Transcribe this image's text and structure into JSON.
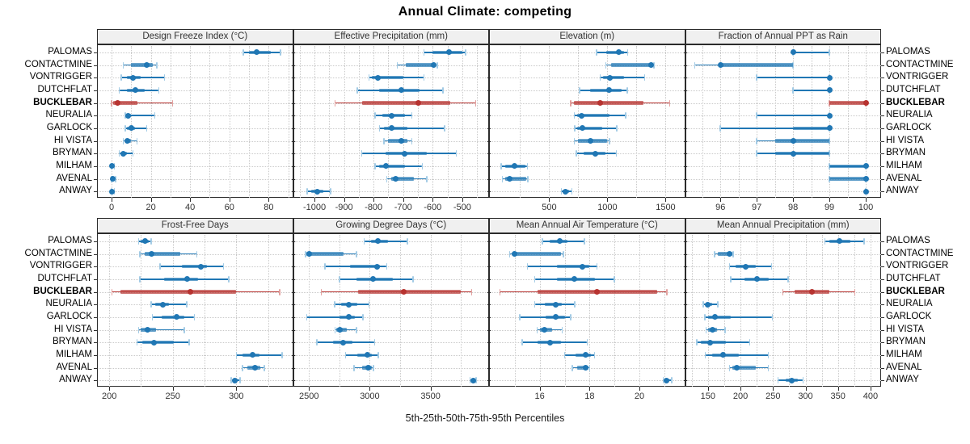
{
  "title": "Annual Climate: competing",
  "caption": "5th-25th-50th-75th-95th Percentiles",
  "colors": {
    "blue": "#2077b4",
    "blue_light": "#a3cbe5",
    "red": "#b73330",
    "red_light": "#e2a19f",
    "strip_bg": "#f0f0f0",
    "grid": "#c9c9c9",
    "border": "#2b2b2b"
  },
  "locations": [
    "PALOMAS",
    "CONTACTMINE",
    "VONTRIGGER",
    "DUTCHFLAT",
    "BUCKLEBAR",
    "NEURALIA",
    "GARLOCK",
    "HI VISTA",
    "BRYMAN",
    "MILHAM",
    "AVENAL",
    "ANWAY"
  ],
  "highlight_location": "BUCKLEBAR",
  "chart_data": {
    "type": "scatter",
    "subtype": "percentile-interval-dotplot",
    "percentiles": [
      5,
      25,
      50,
      75,
      95
    ],
    "grid": "dotted",
    "panels": [
      {
        "title": "Design Freeze Index (°C)",
        "xlim": [
          -7,
          92
        ],
        "ticks": [
          0,
          20,
          40,
          60,
          80
        ],
        "tick_labels": [
          "0",
          "20",
          "40",
          "60",
          "80"
        ],
        "values": [
          [
            67,
            70,
            74,
            81,
            86
          ],
          [
            6,
            10,
            18,
            21,
            23
          ],
          [
            5,
            8,
            11,
            15,
            27
          ],
          [
            4,
            8,
            12,
            17,
            24
          ],
          [
            0,
            1,
            3,
            13,
            31
          ],
          [
            7,
            8,
            8.5,
            10,
            22
          ],
          [
            7,
            8,
            10,
            12,
            18
          ],
          [
            6,
            7,
            8,
            10,
            13
          ],
          [
            4,
            5,
            6,
            8,
            11
          ],
          [
            0,
            0,
            0.3,
            0.8,
            1.5
          ],
          [
            0,
            0.2,
            0.6,
            1.2,
            2
          ],
          [
            0,
            0,
            0.3,
            0.8,
            1.5
          ]
        ]
      },
      {
        "title": "Effective Precipitation (mm)",
        "xlim": [
          -1070,
          -412
        ],
        "ticks": [
          -1000,
          -900,
          -800,
          -700,
          -600,
          -500
        ],
        "tick_labels": [
          "-1000",
          "-900",
          "-800",
          "-700",
          "-600",
          "-500"
        ],
        "values": [
          [
            -630,
            -600,
            -545,
            -500,
            -488
          ],
          [
            -720,
            -690,
            -598,
            -590,
            -585
          ],
          [
            -815,
            -805,
            -785,
            -700,
            -630
          ],
          [
            -855,
            -780,
            -705,
            -645,
            -565
          ],
          [
            -930,
            -840,
            -650,
            -540,
            -455
          ],
          [
            -795,
            -770,
            -740,
            -695,
            -670
          ],
          [
            -780,
            -765,
            -740,
            -685,
            -560
          ],
          [
            -765,
            -750,
            -705,
            -685,
            -670
          ],
          [
            -840,
            -760,
            -695,
            -620,
            -520
          ],
          [
            -795,
            -780,
            -758,
            -695,
            -635
          ],
          [
            -755,
            -740,
            -725,
            -665,
            -620
          ],
          [
            -1025,
            -1010,
            -990,
            -970,
            -945
          ]
        ]
      },
      {
        "title": "Elevation (m)",
        "xlim": [
          -10,
          1660
        ],
        "ticks": [
          500,
          1000,
          1500
        ],
        "tick_labels": [
          "500",
          "1000",
          "1500"
        ],
        "values": [
          [
            905,
            990,
            1095,
            1140,
            1175
          ],
          [
            985,
            1035,
            1375,
            1392,
            1400
          ],
          [
            938,
            962,
            1020,
            1145,
            1320
          ],
          [
            760,
            850,
            1012,
            1123,
            1170
          ],
          [
            685,
            715,
            940,
            1310,
            1535
          ],
          [
            715,
            737,
            778,
            1015,
            1155
          ],
          [
            720,
            737,
            787,
            955,
            1080
          ],
          [
            715,
            748,
            852,
            1000,
            1017
          ],
          [
            732,
            794,
            898,
            985,
            1075
          ],
          [
            88,
            123,
            204,
            296,
            312
          ],
          [
            97,
            121,
            158,
            305,
            318
          ],
          [
            603,
            617,
            638,
            668,
            695
          ]
        ]
      },
      {
        "title": "Fraction of Annual PPT as Rain",
        "xlim": [
          95.05,
          100.4
        ],
        "ticks": [
          96,
          97,
          98,
          99,
          100
        ],
        "tick_labels": [
          "96",
          "97",
          "98",
          "99",
          "100"
        ],
        "values": [
          [
            98,
            98,
            98,
            98,
            99
          ],
          [
            95.3,
            96,
            96,
            98,
            98
          ],
          [
            97,
            99,
            99,
            99,
            99
          ],
          [
            98,
            99,
            99,
            99,
            99
          ],
          [
            99,
            99,
            100,
            100,
            100
          ],
          [
            97,
            99,
            99,
            99,
            99
          ],
          [
            96,
            98,
            99,
            99,
            99
          ],
          [
            97,
            97.5,
            98,
            99,
            99
          ],
          [
            97,
            97.5,
            98,
            99,
            99
          ],
          [
            99,
            99,
            100,
            100,
            100
          ],
          [
            99,
            99,
            100,
            100,
            100
          ],
          [
            100,
            100,
            100,
            100,
            100
          ]
        ]
      },
      {
        "title": "Frost-Free Days",
        "xlim": [
          191,
          344
        ],
        "ticks": [
          200,
          250,
          300
        ],
        "tick_labels": [
          "200",
          "250",
          "300"
        ],
        "values": [
          [
            223,
            225,
            228,
            231,
            233
          ],
          [
            224,
            228,
            233,
            256,
            269
          ],
          [
            240,
            257,
            272,
            277,
            290
          ],
          [
            224,
            243,
            261,
            270,
            294
          ],
          [
            202,
            209,
            264,
            300,
            334
          ],
          [
            233,
            236,
            242,
            247,
            261
          ],
          [
            234,
            241,
            253,
            259,
            267
          ],
          [
            223,
            225,
            230,
            237,
            259
          ],
          [
            222,
            226,
            235,
            251,
            263
          ],
          [
            300,
            305,
            313,
            318,
            336
          ],
          [
            305,
            309,
            315,
            319,
            322
          ],
          [
            296,
            297,
            299,
            301,
            303
          ]
        ]
      },
      {
        "title": "Growing Degree Days (°C)",
        "xlim": [
          2375,
          3975
        ],
        "ticks": [
          2500,
          3000,
          3500
        ],
        "tick_labels": [
          "2500",
          "3000",
          "3500"
        ],
        "values": [
          [
            2955,
            3010,
            3070,
            3150,
            3310
          ],
          [
            2470,
            2480,
            2500,
            2785,
            2890
          ],
          [
            2630,
            2840,
            3060,
            3085,
            3140
          ],
          [
            2750,
            2890,
            3030,
            3190,
            3355
          ],
          [
            2600,
            2905,
            3280,
            3750,
            3840
          ],
          [
            2710,
            2765,
            2830,
            2895,
            2995
          ],
          [
            2480,
            2750,
            2825,
            2875,
            2945
          ],
          [
            2715,
            2725,
            2757,
            2810,
            2890
          ],
          [
            2565,
            2700,
            2778,
            2855,
            3040
          ],
          [
            2800,
            2900,
            2980,
            3020,
            3070
          ],
          [
            2870,
            2935,
            2985,
            3015,
            3030
          ],
          [
            3825,
            3835,
            3850,
            3865,
            3875
          ]
        ]
      },
      {
        "title": "Mean Annual Air Temperature (°C)",
        "xlim": [
          14,
          21.8
        ],
        "ticks": [
          16,
          18,
          20
        ],
        "tick_labels": [
          "16",
          "18",
          "20"
        ],
        "values": [
          [
            16.1,
            16.4,
            16.8,
            17.1,
            17.8
          ],
          [
            14.8,
            14.9,
            15.0,
            16.85,
            16.95
          ],
          [
            15.5,
            16.7,
            17.7,
            18.0,
            18.3
          ],
          [
            15.8,
            16.7,
            17.4,
            18.2,
            19.0
          ],
          [
            14.4,
            15.9,
            18.3,
            20.7,
            21.1
          ],
          [
            15.8,
            16.2,
            16.65,
            16.9,
            17.4
          ],
          [
            15.2,
            16.25,
            16.65,
            17.0,
            17.25
          ],
          [
            15.9,
            16.0,
            16.2,
            16.5,
            16.9
          ],
          [
            15.3,
            15.9,
            16.4,
            16.85,
            17.9
          ],
          [
            17.0,
            17.45,
            17.85,
            18.05,
            18.2
          ],
          [
            17.3,
            17.5,
            17.85,
            17.95,
            18.0
          ],
          [
            20.95,
            21.0,
            21.1,
            21.2,
            21.3
          ]
        ]
      },
      {
        "title": "Mean Annual Precipitation (mm)",
        "xlim": [
          116,
          415
        ],
        "ticks": [
          150,
          200,
          250,
          300,
          350,
          400
        ],
        "tick_labels": [
          "150",
          "200",
          "250",
          "300",
          "350",
          "400"
        ],
        "values": [
          [
            330,
            337,
            352,
            369,
            390
          ],
          [
            160,
            165,
            183,
            187,
            189
          ],
          [
            183,
            193,
            208,
            224,
            248
          ],
          [
            185,
            206,
            225,
            243,
            273
          ],
          [
            265,
            283,
            310,
            337,
            376
          ],
          [
            143,
            146,
            150,
            157,
            165
          ],
          [
            145,
            150,
            161,
            185,
            249
          ],
          [
            147,
            150,
            157,
            164,
            176
          ],
          [
            133,
            139,
            153,
            178,
            214
          ],
          [
            146,
            157,
            173,
            197,
            243
          ],
          [
            183,
            187,
            194,
            223,
            243
          ],
          [
            258,
            269,
            279,
            288,
            296
          ]
        ]
      }
    ]
  }
}
